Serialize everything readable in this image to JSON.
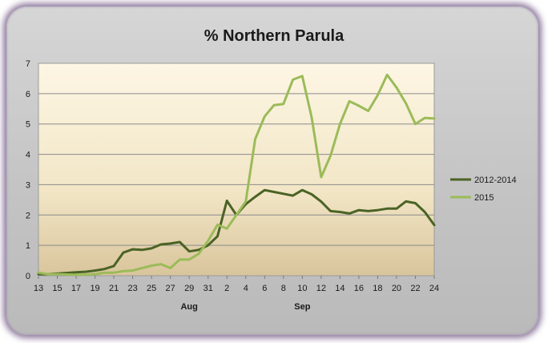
{
  "chart_data": {
    "type": "line",
    "title": "% Northern Parula",
    "xlabel": "",
    "ylabel": "",
    "ylim": [
      0,
      7
    ],
    "yticks": [
      "0",
      "1",
      "2",
      "3",
      "4",
      "5",
      "6",
      "7"
    ],
    "x": [
      "13",
      "14",
      "15",
      "16",
      "17",
      "18",
      "19",
      "20",
      "21",
      "22",
      "23",
      "24",
      "25",
      "26",
      "27",
      "28",
      "29",
      "30",
      "31",
      "1",
      "2",
      "3",
      "4",
      "5",
      "6",
      "7",
      "8",
      "9",
      "10",
      "11",
      "12",
      "13",
      "14",
      "15",
      "16",
      "17",
      "18",
      "19",
      "20",
      "21",
      "22",
      "23",
      "24"
    ],
    "xtick_labels": [
      "13",
      "15",
      "17",
      "19",
      "21",
      "23",
      "25",
      "27",
      "29",
      "31",
      "2",
      "4",
      "6",
      "8",
      "10",
      "12",
      "14",
      "16",
      "18",
      "20",
      "22",
      "24"
    ],
    "month_labels": [
      {
        "label": "Aug",
        "at_index": 16
      },
      {
        "label": "Sep",
        "at_index": 28
      }
    ],
    "grid": true,
    "legend_position": "right",
    "series": [
      {
        "name": "2012-2014",
        "color": "#4a6325",
        "values": [
          0.05,
          0.05,
          0.07,
          0.09,
          0.11,
          0.13,
          0.17,
          0.22,
          0.32,
          0.76,
          0.87,
          0.85,
          0.9,
          1.03,
          1.06,
          1.11,
          0.8,
          0.85,
          1.0,
          1.3,
          2.47,
          2.0,
          2.36,
          2.6,
          2.82,
          2.76,
          2.7,
          2.64,
          2.82,
          2.68,
          2.44,
          2.13,
          2.1,
          2.05,
          2.16,
          2.13,
          2.16,
          2.21,
          2.21,
          2.45,
          2.39,
          2.1,
          1.67
        ]
      },
      {
        "name": "2015",
        "color": "#9bbb59",
        "values": [
          0.1,
          0.05,
          0.05,
          0.04,
          0.03,
          0.03,
          0.05,
          0.1,
          0.1,
          0.15,
          0.17,
          0.25,
          0.33,
          0.38,
          0.25,
          0.53,
          0.53,
          0.72,
          1.15,
          1.68,
          1.55,
          2.0,
          2.45,
          4.5,
          5.25,
          5.62,
          5.66,
          6.46,
          6.58,
          5.2,
          3.25,
          3.96,
          5.0,
          5.75,
          5.6,
          5.43,
          5.95,
          6.62,
          6.2,
          5.68,
          5.0,
          5.2,
          5.18
        ]
      }
    ]
  }
}
